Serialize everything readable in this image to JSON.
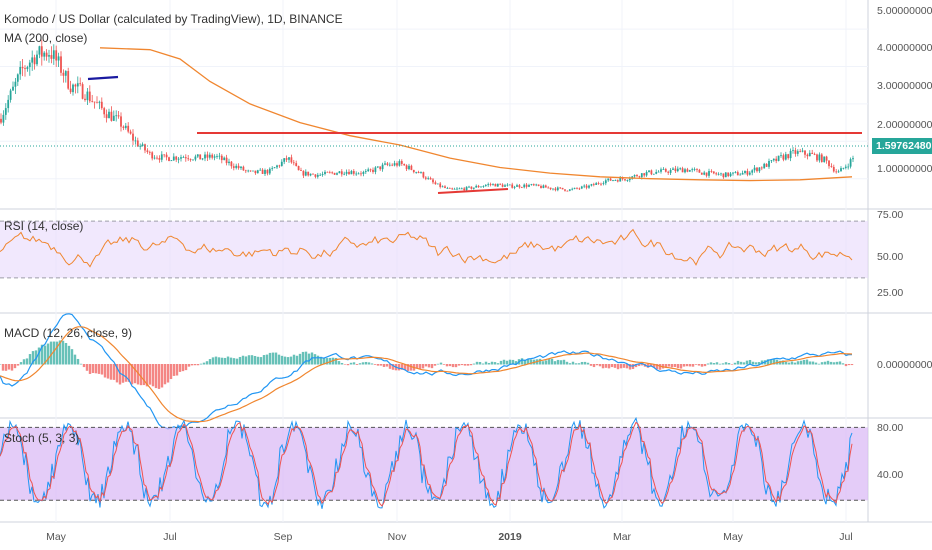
{
  "header": {
    "title": "Komodo / US Dollar (calculated by TradingView), 1D, BINANCE",
    "ma_label": "MA (200, close)"
  },
  "panes": {
    "price": {
      "last_price": "1.59762480",
      "axis_labels": [
        "5.00000000",
        "4.00000000",
        "3.00000000",
        "2.00000000",
        "1.00000000"
      ]
    },
    "rsi": {
      "label": "RSI (14, close)",
      "axis_labels": [
        "75.00",
        "50.00",
        "25.00"
      ]
    },
    "macd": {
      "label": "MACD (12, 26, close, 9)",
      "axis_labels": [
        "0.00000000"
      ]
    },
    "stoch": {
      "label": "Stoch (5, 3, 3)",
      "axis_labels": [
        "80.00",
        "40.00"
      ]
    }
  },
  "time_axis": [
    "May",
    "Jul",
    "Sep",
    "Nov",
    "2019",
    "Mar",
    "May",
    "Jul"
  ],
  "colors": {
    "up": "#26a69a",
    "down": "#ef5350",
    "ma": "#f0862f",
    "trendline": "#e53935",
    "blue_line": "#1a1aa0",
    "rsi_line": "#f0862f",
    "rsi_band": "#e8d9fb",
    "macd_line": "#2196f3",
    "signal_line": "#f0862f",
    "stoch_k": "#2196f3",
    "stoch_d": "#ef5350",
    "stoch_band": "#d9b7f5"
  }
}
